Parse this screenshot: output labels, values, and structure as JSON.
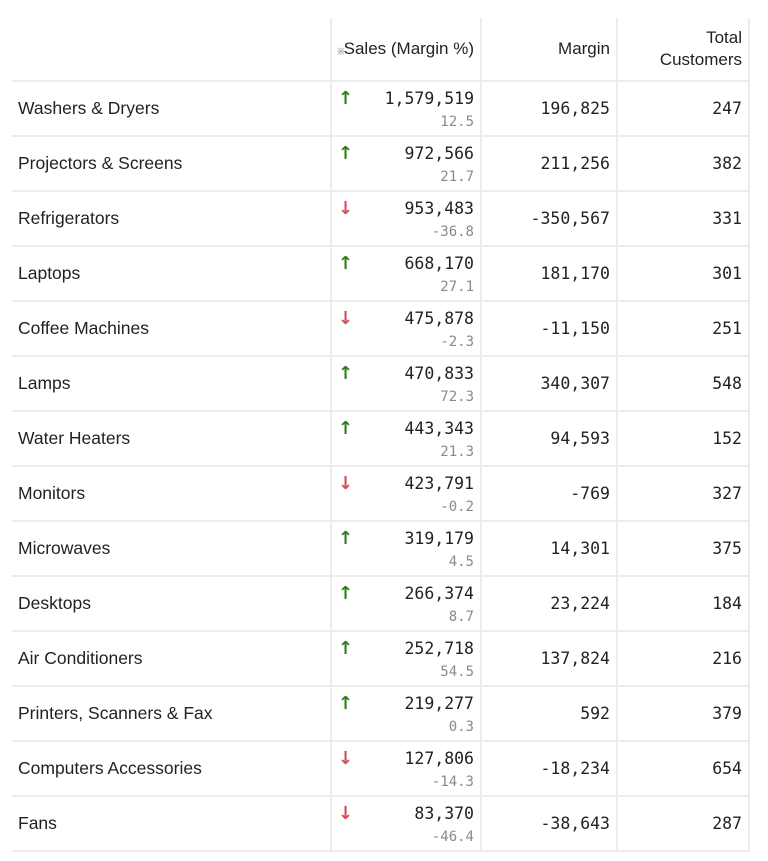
{
  "columns": {
    "name": "",
    "sales": "Sales (Margin %)",
    "margin": "Margin",
    "customers": "Total Customers"
  },
  "colors": {
    "up": "#2e7d1e",
    "down": "#d0505a"
  },
  "header_icon": "collapse-icon",
  "rows": [
    {
      "name": "Washers & Dryers",
      "trend": "up",
      "sales": "1,579,519",
      "margin_pct": "12.5",
      "margin": "196,825",
      "customers": "247"
    },
    {
      "name": "Projectors & Screens",
      "trend": "up",
      "sales": "972,566",
      "margin_pct": "21.7",
      "margin": "211,256",
      "customers": "382"
    },
    {
      "name": "Refrigerators",
      "trend": "down",
      "sales": "953,483",
      "margin_pct": "-36.8",
      "margin": "-350,567",
      "customers": "331"
    },
    {
      "name": "Laptops",
      "trend": "up",
      "sales": "668,170",
      "margin_pct": "27.1",
      "margin": "181,170",
      "customers": "301"
    },
    {
      "name": "Coffee Machines",
      "trend": "down",
      "sales": "475,878",
      "margin_pct": "-2.3",
      "margin": "-11,150",
      "customers": "251"
    },
    {
      "name": "Lamps",
      "trend": "up",
      "sales": "470,833",
      "margin_pct": "72.3",
      "margin": "340,307",
      "customers": "548"
    },
    {
      "name": "Water Heaters",
      "trend": "up",
      "sales": "443,343",
      "margin_pct": "21.3",
      "margin": "94,593",
      "customers": "152"
    },
    {
      "name": "Monitors",
      "trend": "down",
      "sales": "423,791",
      "margin_pct": "-0.2",
      "margin": "-769",
      "customers": "327"
    },
    {
      "name": "Microwaves",
      "trend": "up",
      "sales": "319,179",
      "margin_pct": "4.5",
      "margin": "14,301",
      "customers": "375"
    },
    {
      "name": "Desktops",
      "trend": "up",
      "sales": "266,374",
      "margin_pct": "8.7",
      "margin": "23,224",
      "customers": "184"
    },
    {
      "name": "Air Conditioners",
      "trend": "up",
      "sales": "252,718",
      "margin_pct": "54.5",
      "margin": "137,824",
      "customers": "216"
    },
    {
      "name": "Printers, Scanners & Fax",
      "trend": "up",
      "sales": "219,277",
      "margin_pct": "0.3",
      "margin": "592",
      "customers": "379"
    },
    {
      "name": "Computers Accessories",
      "trend": "down",
      "sales": "127,806",
      "margin_pct": "-14.3",
      "margin": "-18,234",
      "customers": "654"
    },
    {
      "name": "Fans",
      "trend": "down",
      "sales": "83,370",
      "margin_pct": "-46.4",
      "margin": "-38,643",
      "customers": "287"
    }
  ]
}
